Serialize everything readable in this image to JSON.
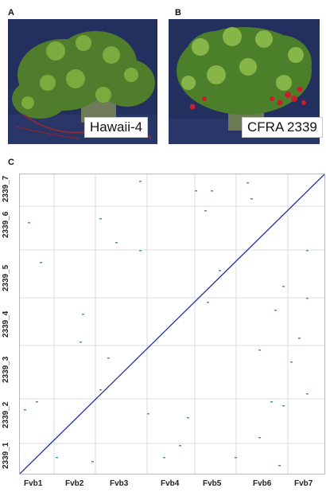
{
  "panels": {
    "a": {
      "letter": "A",
      "label": "Hawaii-4"
    },
    "b": {
      "letter": "B",
      "label": "CFRA 2339"
    },
    "c": {
      "letter": "C"
    }
  },
  "colors": {
    "diagonal": "#1f2fa8",
    "grid": "#d7dbe0",
    "dots": "#3a9bb0",
    "backdrop": "#1f2a5c"
  },
  "chart_data": {
    "type": "scatter",
    "title": "",
    "x_axis": [
      "Fvb1",
      "Fvb2",
      "Fvb3",
      "Fvb4",
      "Fvb5",
      "Fvb6",
      "Fvb7"
    ],
    "y_axis": [
      "2339_1",
      "2339_2",
      "2339_3",
      "2339_4",
      "2339_5",
      "2339_6",
      "2339_7"
    ],
    "main_series": "diagonal synteny line from lower-left to upper-right"
  }
}
